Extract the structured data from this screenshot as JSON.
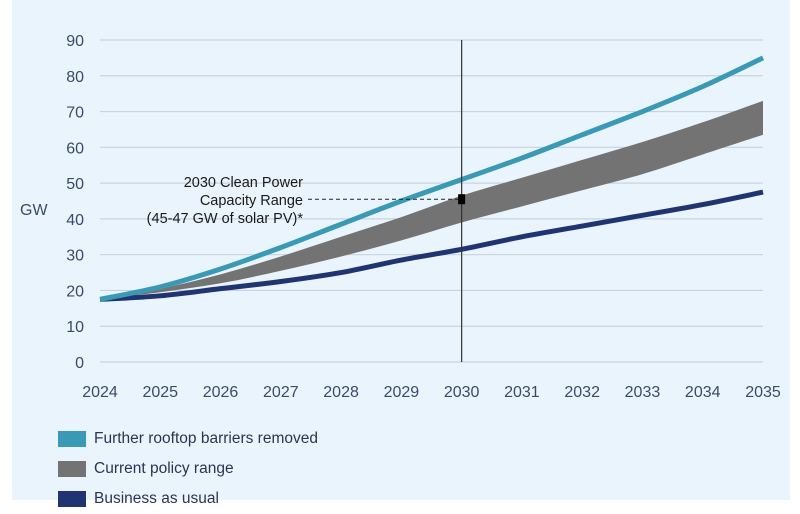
{
  "chart_data": {
    "type": "line",
    "title": "",
    "xlabel": "",
    "ylabel": "GW",
    "x": [
      2024,
      2025,
      2026,
      2027,
      2028,
      2029,
      2030,
      2031,
      2032,
      2033,
      2034,
      2035
    ],
    "xlim": [
      2024,
      2035
    ],
    "ylim": [
      0,
      90
    ],
    "yticks": [
      0,
      10,
      20,
      30,
      40,
      50,
      60,
      70,
      80,
      90
    ],
    "xticks": [
      "2024",
      "2025",
      "2026",
      "2027",
      "2028",
      "2029",
      "2030",
      "2031",
      "2032",
      "2033",
      "2034",
      "2035"
    ],
    "grid": "horizontal",
    "legend_position": "bottom-left",
    "series": [
      {
        "name": "Further rooftop barriers removed",
        "kind": "line",
        "color": "#3a9ab5",
        "values": [
          17.5,
          21,
          26,
          32,
          38.5,
          45,
          51,
          57,
          63.5,
          70,
          77,
          85
        ]
      },
      {
        "name": "Current policy range",
        "kind": "band",
        "color": "#737373",
        "upper": [
          17.5,
          20.5,
          24.5,
          29.5,
          35,
          40.5,
          46.5,
          51.5,
          56.5,
          61.5,
          67,
          73
        ],
        "lower": [
          17.5,
          19.5,
          22,
          25.5,
          29.5,
          34,
          39,
          43.5,
          48,
          52.5,
          58,
          63.5
        ]
      },
      {
        "name": "Business as usual",
        "kind": "line",
        "color": "#1f3470",
        "values": [
          17.5,
          18.5,
          20.5,
          22.5,
          25,
          28.5,
          31.5,
          35,
          38,
          41,
          44,
          47.5
        ]
      }
    ],
    "annotation": {
      "lines": [
        "2030 Clean Power",
        "Capacity Range",
        "(45-47 GW of solar PV)*"
      ],
      "x": 2030,
      "y": 45.5,
      "vertical_line_at": 2030
    }
  }
}
